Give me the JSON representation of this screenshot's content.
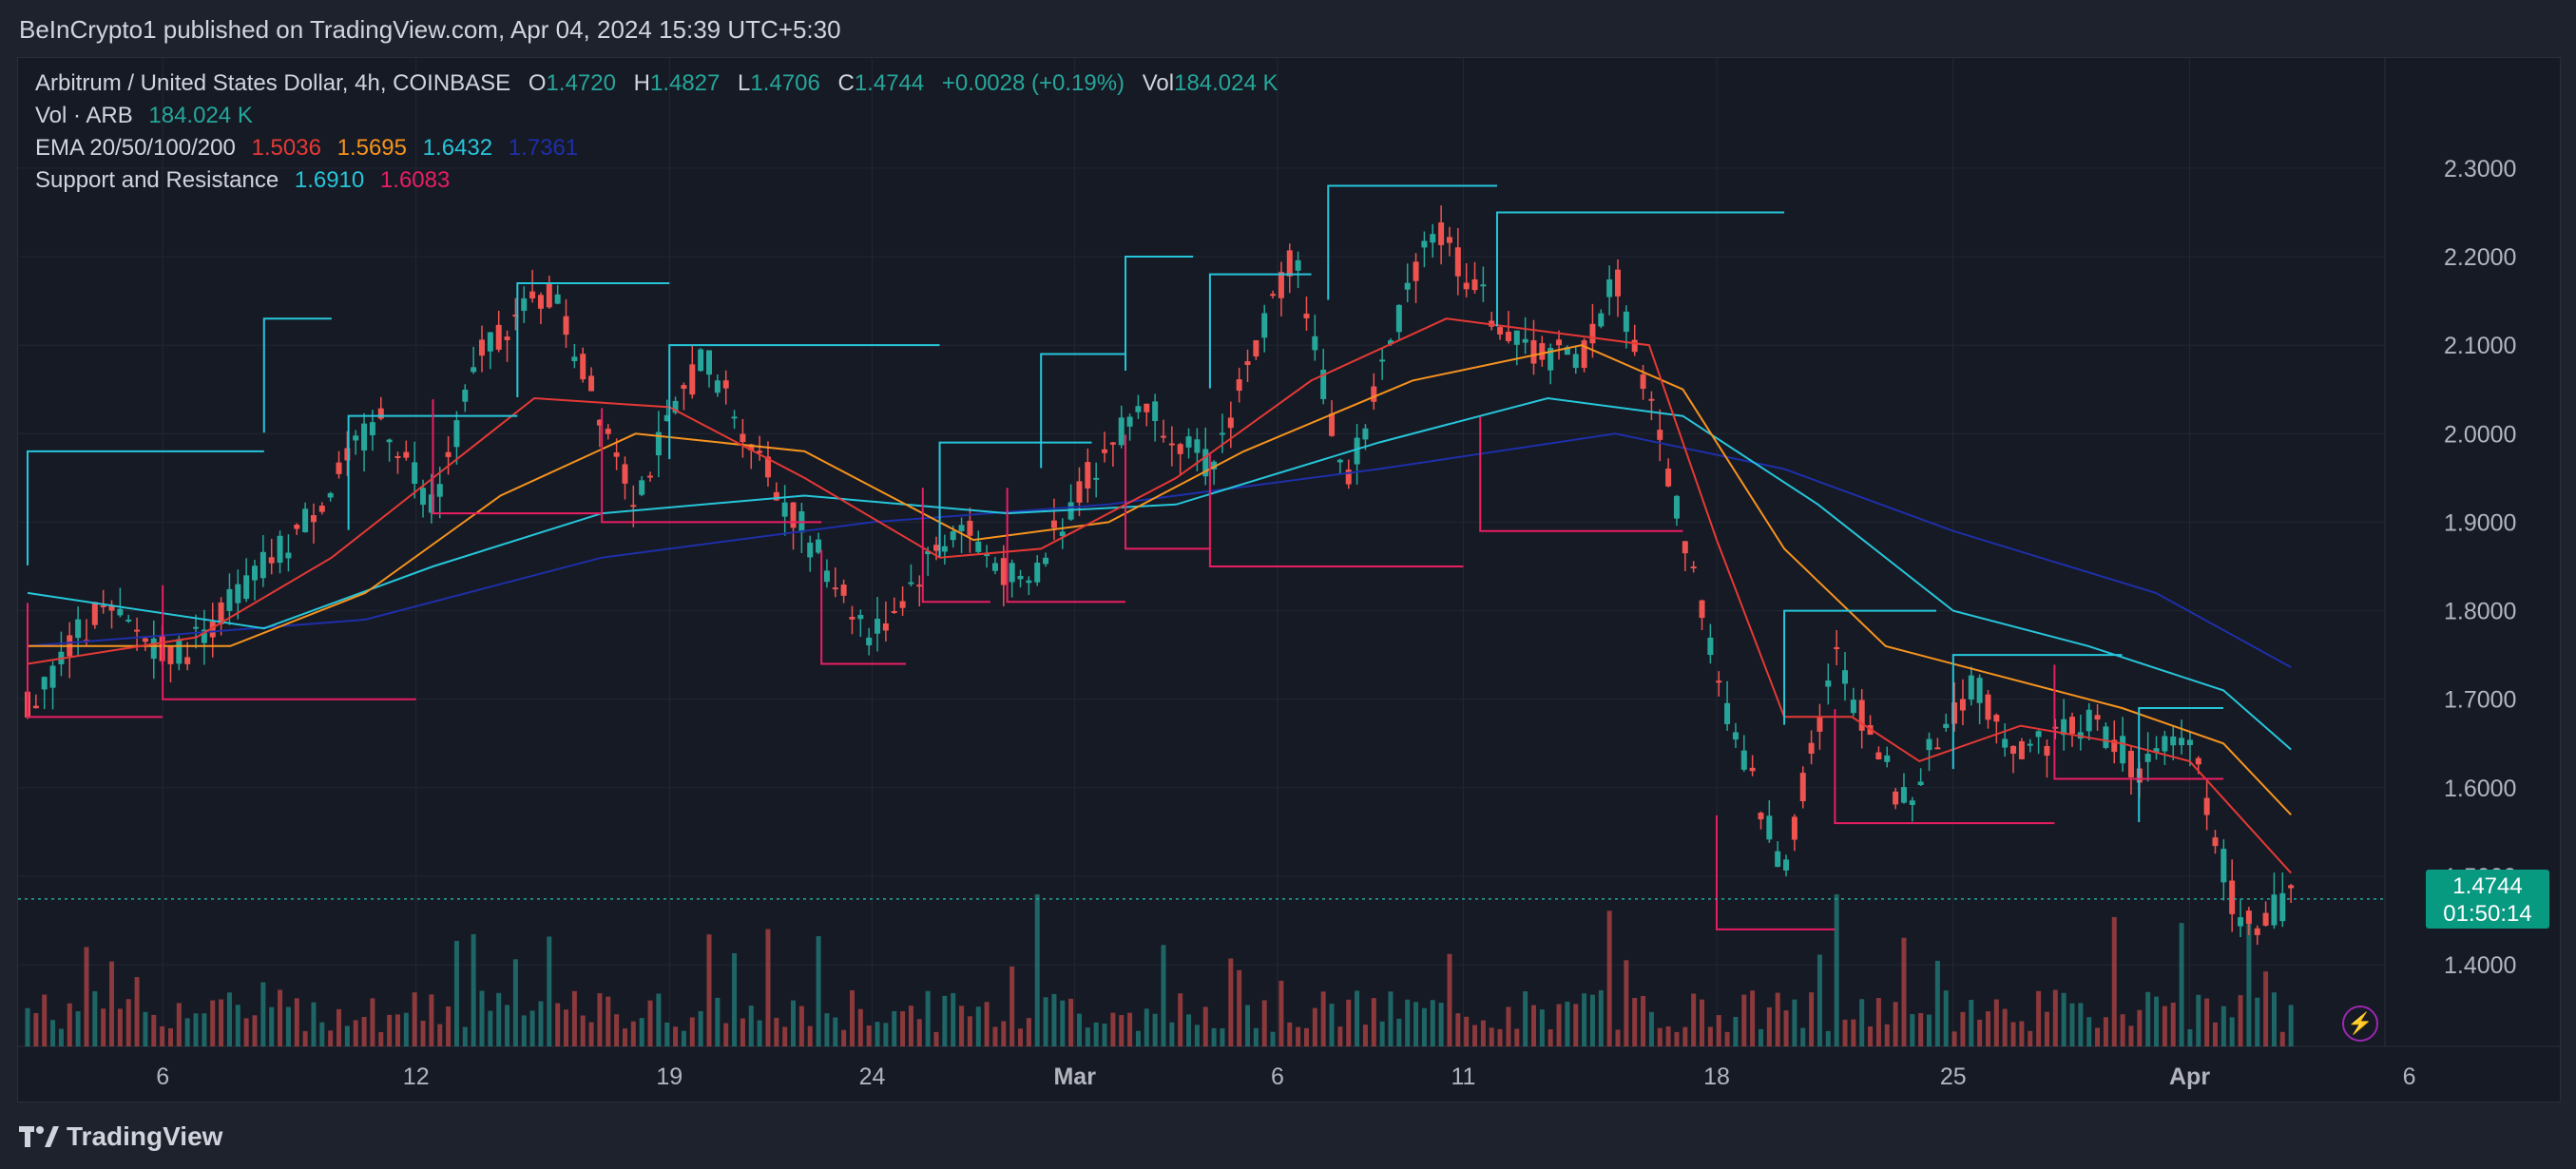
{
  "header": {
    "published": "BeInCrypto1 published on TradingView.com, Apr 04, 2024 15:39 UTC+5:30"
  },
  "legend": {
    "title": "Arbitrum / United States Dollar, 4h, COINBASE",
    "o_key": "O",
    "o_val": "1.4720",
    "h_key": "H",
    "h_val": "1.4827",
    "l_key": "L",
    "l_val": "1.4706",
    "c_key": "C",
    "c_val": "1.4744",
    "change": "+0.0028 (+0.19%)",
    "vol_key": "Vol",
    "vol_val": "184.024 K",
    "vol_row_label": "Vol · ARB",
    "vol_row_val": "184.024 K",
    "ema_label": "EMA 20/50/100/200",
    "ema20": "1.5036",
    "ema50": "1.5695",
    "ema100": "1.6432",
    "ema200": "1.7361",
    "sr_label": "Support and Resistance",
    "sr_res": "1.6910",
    "sr_sup": "1.6083"
  },
  "price_tag": {
    "price": "1.4744",
    "countdown": "01:50:14"
  },
  "footer": {
    "brand": "TradingView"
  },
  "colors": {
    "up": "#26a69a",
    "down": "#ef5350",
    "ema20": "#e53935",
    "ema50": "#f7931e",
    "ema100": "#26c6da",
    "ema200": "#1e2fa8",
    "resistance": "#26c6da",
    "support": "#e91e63",
    "vol_up": "#26a69a",
    "vol_down": "#ef5350"
  },
  "chart_data": {
    "type": "candlestick",
    "symbol": "ARB/USD",
    "timeframe": "4h",
    "x_ticks": [
      "6",
      "12",
      "19",
      "24",
      "Mar",
      "6",
      "11",
      "18",
      "25",
      "Apr",
      "6"
    ],
    "y_ticks": [
      "2.3000",
      "2.2000",
      "2.1000",
      "2.0000",
      "1.9000",
      "1.8000",
      "1.7000",
      "1.6000",
      "1.5000",
      "1.4000"
    ],
    "ylim": [
      1.34,
      2.36
    ],
    "last_price": 1.4744,
    "price_path": [
      {
        "t": 0,
        "p": 1.69
      },
      {
        "t": 4,
        "p": 1.8
      },
      {
        "t": 9,
        "p": 1.75
      },
      {
        "t": 12,
        "p": 1.81
      },
      {
        "t": 16,
        "p": 1.89
      },
      {
        "t": 21,
        "p": 2.02
      },
      {
        "t": 24,
        "p": 1.92
      },
      {
        "t": 27,
        "p": 2.1
      },
      {
        "t": 31,
        "p": 2.16
      },
      {
        "t": 36,
        "p": 1.93
      },
      {
        "t": 40,
        "p": 2.09
      },
      {
        "t": 44,
        "p": 1.95
      },
      {
        "t": 50,
        "p": 1.77
      },
      {
        "t": 55,
        "p": 1.9
      },
      {
        "t": 59,
        "p": 1.82
      },
      {
        "t": 62,
        "p": 1.93
      },
      {
        "t": 66,
        "p": 2.04
      },
      {
        "t": 70,
        "p": 1.96
      },
      {
        "t": 75,
        "p": 2.21
      },
      {
        "t": 78,
        "p": 1.94
      },
      {
        "t": 83,
        "p": 2.24
      },
      {
        "t": 88,
        "p": 2.1
      },
      {
        "t": 92,
        "p": 2.08
      },
      {
        "t": 94,
        "p": 2.18
      },
      {
        "t": 98,
        "p": 1.89
      },
      {
        "t": 101,
        "p": 1.66
      },
      {
        "t": 104,
        "p": 1.51
      },
      {
        "t": 107,
        "p": 1.75
      },
      {
        "t": 111,
        "p": 1.58
      },
      {
        "t": 115,
        "p": 1.72
      },
      {
        "t": 118,
        "p": 1.64
      },
      {
        "t": 122,
        "p": 1.68
      },
      {
        "t": 125,
        "p": 1.62
      },
      {
        "t": 128,
        "p": 1.66
      },
      {
        "t": 131,
        "p": 1.44
      },
      {
        "t": 134,
        "p": 1.4744
      }
    ],
    "ema_paths": {
      "ema20": [
        [
          0,
          1.74
        ],
        [
          10,
          1.77
        ],
        [
          18,
          1.86
        ],
        [
          24,
          1.95
        ],
        [
          30,
          2.04
        ],
        [
          38,
          2.03
        ],
        [
          46,
          1.95
        ],
        [
          54,
          1.86
        ],
        [
          60,
          1.87
        ],
        [
          68,
          1.95
        ],
        [
          76,
          2.06
        ],
        [
          84,
          2.13
        ],
        [
          92,
          2.11
        ],
        [
          96,
          2.1
        ],
        [
          100,
          1.88
        ],
        [
          104,
          1.68
        ],
        [
          108,
          1.68
        ],
        [
          112,
          1.63
        ],
        [
          118,
          1.67
        ],
        [
          124,
          1.65
        ],
        [
          128,
          1.63
        ],
        [
          134,
          1.5036
        ]
      ],
      "ema50": [
        [
          0,
          1.76
        ],
        [
          12,
          1.76
        ],
        [
          20,
          1.82
        ],
        [
          28,
          1.93
        ],
        [
          36,
          2.0
        ],
        [
          46,
          1.98
        ],
        [
          56,
          1.88
        ],
        [
          64,
          1.9
        ],
        [
          72,
          1.98
        ],
        [
          82,
          2.06
        ],
        [
          92,
          2.1
        ],
        [
          98,
          2.05
        ],
        [
          104,
          1.87
        ],
        [
          110,
          1.76
        ],
        [
          116,
          1.73
        ],
        [
          124,
          1.69
        ],
        [
          130,
          1.65
        ],
        [
          134,
          1.5695
        ]
      ],
      "ema100": [
        [
          0,
          1.82
        ],
        [
          14,
          1.78
        ],
        [
          24,
          1.85
        ],
        [
          34,
          1.91
        ],
        [
          46,
          1.93
        ],
        [
          58,
          1.91
        ],
        [
          68,
          1.92
        ],
        [
          80,
          1.99
        ],
        [
          90,
          2.04
        ],
        [
          98,
          2.02
        ],
        [
          106,
          1.92
        ],
        [
          114,
          1.8
        ],
        [
          122,
          1.76
        ],
        [
          130,
          1.71
        ],
        [
          134,
          1.6432
        ]
      ],
      "ema200": [
        [
          0,
          1.76
        ],
        [
          20,
          1.79
        ],
        [
          34,
          1.86
        ],
        [
          50,
          1.9
        ],
        [
          64,
          1.92
        ],
        [
          80,
          1.96
        ],
        [
          94,
          2.0
        ],
        [
          104,
          1.96
        ],
        [
          114,
          1.89
        ],
        [
          126,
          1.82
        ],
        [
          134,
          1.7361
        ]
      ]
    },
    "resistance_levels": [
      {
        "t0": 0,
        "t1": 14,
        "p": 1.98
      },
      {
        "t0": 14,
        "t1": 18,
        "p": 2.13
      },
      {
        "t0": 19,
        "t1": 29,
        "p": 2.02
      },
      {
        "t0": 29,
        "t1": 38,
        "p": 2.17
      },
      {
        "t0": 38,
        "t1": 54,
        "p": 2.1
      },
      {
        "t0": 54,
        "t1": 63,
        "p": 1.99
      },
      {
        "t0": 60,
        "t1": 65,
        "p": 2.09
      },
      {
        "t0": 65,
        "t1": 69,
        "p": 2.2
      },
      {
        "t0": 70,
        "t1": 76,
        "p": 2.18
      },
      {
        "t0": 77,
        "t1": 87,
        "p": 2.28
      },
      {
        "t0": 87,
        "t1": 104,
        "p": 2.25
      },
      {
        "t0": 104,
        "t1": 113,
        "p": 1.8
      },
      {
        "t0": 114,
        "t1": 124,
        "p": 1.75
      },
      {
        "t0": 125,
        "t1": 130,
        "p": 1.69
      }
    ],
    "support_levels": [
      {
        "t0": 0,
        "t1": 8,
        "p": 1.68
      },
      {
        "t0": 8,
        "t1": 23,
        "p": 1.7
      },
      {
        "t0": 24,
        "t1": 34,
        "p": 1.91
      },
      {
        "t0": 34,
        "t1": 47,
        "p": 1.9
      },
      {
        "t0": 47,
        "t1": 52,
        "p": 1.74
      },
      {
        "t0": 53,
        "t1": 57,
        "p": 1.81
      },
      {
        "t0": 58,
        "t1": 65,
        "p": 1.81
      },
      {
        "t0": 65,
        "t1": 70,
        "p": 1.87
      },
      {
        "t0": 70,
        "t1": 85,
        "p": 1.85
      },
      {
        "t0": 86,
        "t1": 98,
        "p": 1.89
      },
      {
        "t0": 100,
        "t1": 107,
        "p": 1.44
      },
      {
        "t0": 107,
        "t1": 120,
        "p": 1.56
      },
      {
        "t0": 120,
        "t1": 130,
        "p": 1.61
      }
    ]
  }
}
